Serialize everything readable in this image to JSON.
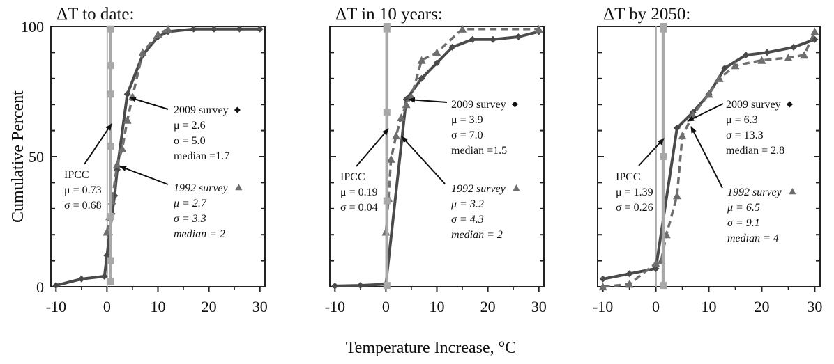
{
  "colors": {
    "survey_2009": "#4a4a4a",
    "survey_1992": "#6e6e6e",
    "ipcc_line": "#a8a8a8",
    "axis": "#222222",
    "arrow": "#111111"
  },
  "figure": {
    "xlabel": "Temperature Increase, °C",
    "ylabel": "Cumulative Percent"
  },
  "chart_data": [
    {
      "type": "line",
      "title": "ΔT to date:",
      "xlim": [
        -11,
        31
      ],
      "ylim": [
        0,
        100
      ],
      "xticks": [
        -10,
        0,
        10,
        20,
        30
      ],
      "xtick_labels": [
        "-10",
        "0",
        "10",
        "20",
        "30"
      ],
      "yticks": [
        0,
        50,
        100
      ],
      "ytick_labels": [
        "0",
        "50",
        "100"
      ],
      "series": [
        {
          "name": "2009 survey",
          "marker": "diamond",
          "dashed": false,
          "x": [
            -10,
            -5,
            -0.5,
            0,
            0.5,
            1,
            1.5,
            2,
            4,
            7,
            10,
            12,
            17,
            21,
            26,
            30
          ],
          "y": [
            0.5,
            3,
            4,
            12,
            20,
            28,
            35,
            45,
            74,
            89,
            96,
            98,
            99,
            99,
            99,
            99
          ]
        },
        {
          "name": "1992 survey",
          "marker": "triangle",
          "dashed": true,
          "x": [
            0,
            0.5,
            1,
            2,
            3,
            4,
            5,
            7,
            10,
            12
          ],
          "y": [
            21,
            27,
            33,
            47,
            53,
            64,
            73,
            90,
            97,
            99
          ]
        },
        {
          "name": "IPCC",
          "marker": "square",
          "dashed": false,
          "x": [
            0.73,
            0.73,
            0.73,
            0.73,
            0.73,
            0.73,
            0.73
          ],
          "y": [
            2,
            10,
            27,
            54,
            74,
            85,
            99
          ]
        }
      ],
      "ipcc_outline_x": 0.05,
      "annotations": {
        "s2009": {
          "label": "2009 survey",
          "mu": "μ = 2.6",
          "sigma": "σ = 5.0",
          "median": "median =1.7"
        },
        "s1992": {
          "label": "1992 survey",
          "mu": "μ = 2.7",
          "sigma": "σ = 3.3",
          "median": "median = 2"
        },
        "ipcc": {
          "label": "IPCC",
          "mu": "μ = 0.73",
          "sigma": "σ = 0.68"
        }
      }
    },
    {
      "type": "line",
      "title": "ΔT in 10 years:",
      "xlim": [
        -11,
        31
      ],
      "ylim": [
        0,
        100
      ],
      "xticks": [
        -10,
        0,
        10,
        20,
        30
      ],
      "xtick_labels": [
        "-10",
        "0",
        "10",
        "20",
        "30"
      ],
      "yticks": [
        0,
        50,
        100
      ],
      "ytick_labels": [
        "",
        "",
        ""
      ],
      "series": [
        {
          "name": "2009 survey",
          "marker": "diamond",
          "dashed": false,
          "x": [
            -10,
            -5,
            0,
            4,
            7,
            10,
            13,
            17,
            21,
            26,
            30
          ],
          "y": [
            0.3,
            0.5,
            1,
            72,
            80,
            86,
            92,
            95,
            95,
            96,
            98
          ]
        },
        {
          "name": "1992 survey",
          "marker": "triangle",
          "dashed": true,
          "x": [
            0,
            0.5,
            1,
            2,
            3,
            4,
            5,
            7,
            10,
            15,
            30
          ],
          "y": [
            21,
            34,
            49,
            58,
            65,
            70,
            73,
            87,
            90,
            99,
            99
          ]
        },
        {
          "name": "IPCC",
          "marker": "square",
          "dashed": false,
          "x": [
            0.19,
            0.19,
            0.19,
            0.19,
            0.19
          ],
          "y": [
            0.5,
            33,
            67,
            99,
            100
          ]
        }
      ],
      "ipcc_outline_x": null,
      "annotations": {
        "s2009": {
          "label": "2009 survey",
          "mu": "μ = 3.9",
          "sigma": "σ = 7.0",
          "median": "median =1.5"
        },
        "s1992": {
          "label": "1992 survey",
          "mu": "μ = 3.2",
          "sigma": "σ = 4.3",
          "median": "median = 2"
        },
        "ipcc": {
          "label": "IPCC",
          "mu": "μ = 0.19",
          "sigma": "σ = 0.04"
        }
      }
    },
    {
      "type": "line",
      "title": "ΔT by 2050:",
      "xlim": [
        -11,
        31
      ],
      "ylim": [
        0,
        100
      ],
      "xticks": [
        -10,
        0,
        10,
        20,
        30
      ],
      "xtick_labels": [
        "-10",
        "0",
        "10",
        "20",
        "30"
      ],
      "yticks": [
        0,
        50,
        100
      ],
      "ytick_labels": [
        "",
        "",
        ""
      ],
      "series": [
        {
          "name": "2009 survey",
          "marker": "diamond",
          "dashed": false,
          "x": [
            -10,
            -5,
            0,
            4,
            7,
            10,
            13,
            17,
            21,
            26,
            30
          ],
          "y": [
            3,
            5,
            7,
            61,
            67,
            74,
            84,
            89,
            90,
            92,
            95
          ]
        },
        {
          "name": "1992 survey",
          "marker": "triangle",
          "dashed": true,
          "x": [
            -10,
            -5,
            0,
            1,
            2,
            4,
            5,
            7,
            10,
            12,
            15,
            20,
            25,
            28,
            30
          ],
          "y": [
            0,
            1,
            9,
            10,
            20,
            35,
            58,
            66,
            74,
            80,
            85,
            87,
            88,
            89,
            98
          ]
        },
        {
          "name": "IPCC",
          "marker": "square",
          "dashed": false,
          "x": [
            1.39,
            1.39,
            1.39,
            1.39
          ],
          "y": [
            0.5,
            50,
            99,
            100
          ]
        }
      ],
      "ipcc_outline_x": 0.05,
      "annotations": {
        "s2009": {
          "label": "2009 survey",
          "mu": "μ = 6.3",
          "sigma": "σ = 13.3",
          "median": "median = 2.8"
        },
        "s1992": {
          "label": "1992 survey",
          "mu": "μ = 6.5",
          "sigma": "σ = 9.1",
          "median": "median = 4"
        },
        "ipcc": {
          "label": "IPCC",
          "mu": "μ = 1.39",
          "sigma": "σ = 0.26"
        }
      }
    }
  ]
}
